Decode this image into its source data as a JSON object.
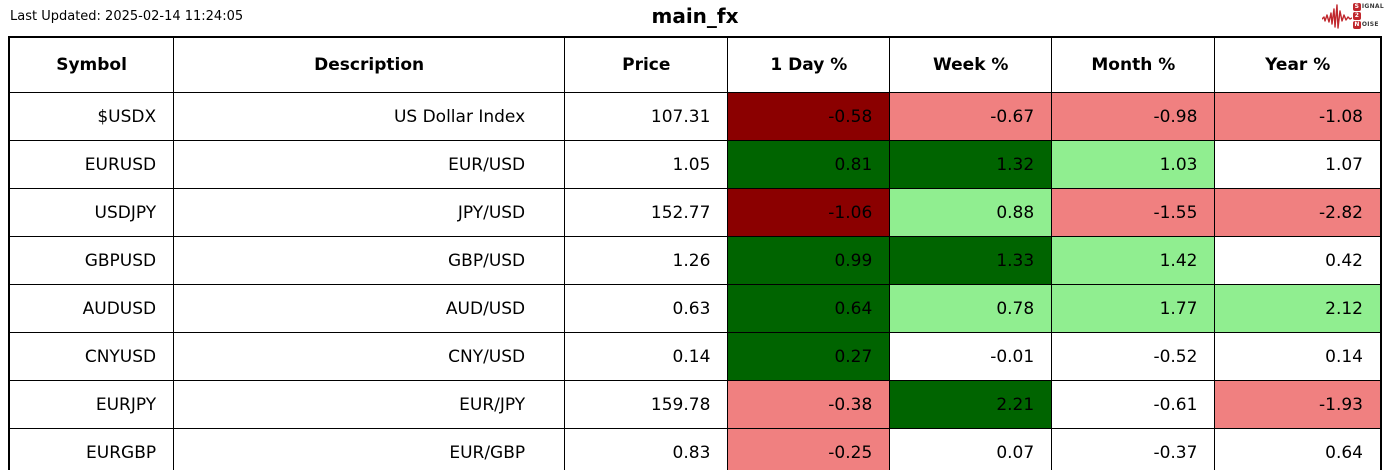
{
  "header": {
    "last_updated": "Last Updated: 2025-02-14 11:24:05",
    "title": "main_fx",
    "logo": {
      "line1": {
        "initial": "S",
        "rest": "IGNAL"
      },
      "line2": {
        "initial": "2",
        "rest": ""
      },
      "line3": {
        "initial": "N",
        "rest": "OISE"
      },
      "accent_color": "#c0272d"
    }
  },
  "colors": {
    "strong_negative": "#8b0000",
    "mild_negative": "#f08080",
    "strong_positive": "#006400",
    "mild_positive": "#90ee90",
    "neutral": "#ffffff"
  },
  "chart_data": {
    "type": "table",
    "title": "main_fx",
    "columns": [
      "Symbol",
      "Description",
      "Price",
      "1 Day %",
      "Week %",
      "Month %",
      "Year %"
    ],
    "rows": [
      {
        "symbol": "$USDX",
        "description": "US Dollar Index",
        "price": "107.31",
        "changes": [
          {
            "value": "-0.58",
            "tone": "strong_negative"
          },
          {
            "value": "-0.67",
            "tone": "mild_negative"
          },
          {
            "value": "-0.98",
            "tone": "mild_negative"
          },
          {
            "value": "-1.08",
            "tone": "mild_negative"
          }
        ]
      },
      {
        "symbol": "EURUSD",
        "description": "EUR/USD",
        "price": "1.05",
        "changes": [
          {
            "value": "0.81",
            "tone": "strong_positive"
          },
          {
            "value": "1.32",
            "tone": "strong_positive"
          },
          {
            "value": "1.03",
            "tone": "mild_positive"
          },
          {
            "value": "1.07",
            "tone": "neutral"
          }
        ]
      },
      {
        "symbol": "USDJPY",
        "description": "JPY/USD",
        "price": "152.77",
        "changes": [
          {
            "value": "-1.06",
            "tone": "strong_negative"
          },
          {
            "value": "0.88",
            "tone": "mild_positive"
          },
          {
            "value": "-1.55",
            "tone": "mild_negative"
          },
          {
            "value": "-2.82",
            "tone": "mild_negative"
          }
        ]
      },
      {
        "symbol": "GBPUSD",
        "description": "GBP/USD",
        "price": "1.26",
        "changes": [
          {
            "value": "0.99",
            "tone": "strong_positive"
          },
          {
            "value": "1.33",
            "tone": "strong_positive"
          },
          {
            "value": "1.42",
            "tone": "mild_positive"
          },
          {
            "value": "0.42",
            "tone": "neutral"
          }
        ]
      },
      {
        "symbol": "AUDUSD",
        "description": "AUD/USD",
        "price": "0.63",
        "changes": [
          {
            "value": "0.64",
            "tone": "strong_positive"
          },
          {
            "value": "0.78",
            "tone": "mild_positive"
          },
          {
            "value": "1.77",
            "tone": "mild_positive"
          },
          {
            "value": "2.12",
            "tone": "mild_positive"
          }
        ]
      },
      {
        "symbol": "CNYUSD",
        "description": "CNY/USD",
        "price": "0.14",
        "changes": [
          {
            "value": "0.27",
            "tone": "strong_positive"
          },
          {
            "value": "-0.01",
            "tone": "neutral"
          },
          {
            "value": "-0.52",
            "tone": "neutral"
          },
          {
            "value": "0.14",
            "tone": "neutral"
          }
        ]
      },
      {
        "symbol": "EURJPY",
        "description": "EUR/JPY",
        "price": "159.78",
        "changes": [
          {
            "value": "-0.38",
            "tone": "mild_negative"
          },
          {
            "value": "2.21",
            "tone": "strong_positive"
          },
          {
            "value": "-0.61",
            "tone": "neutral"
          },
          {
            "value": "-1.93",
            "tone": "mild_negative"
          }
        ]
      },
      {
        "symbol": "EURGBP",
        "description": "EUR/GBP",
        "price": "0.83",
        "changes": [
          {
            "value": "-0.25",
            "tone": "mild_negative"
          },
          {
            "value": "0.07",
            "tone": "neutral"
          },
          {
            "value": "-0.37",
            "tone": "neutral"
          },
          {
            "value": "0.64",
            "tone": "neutral"
          }
        ]
      }
    ]
  }
}
